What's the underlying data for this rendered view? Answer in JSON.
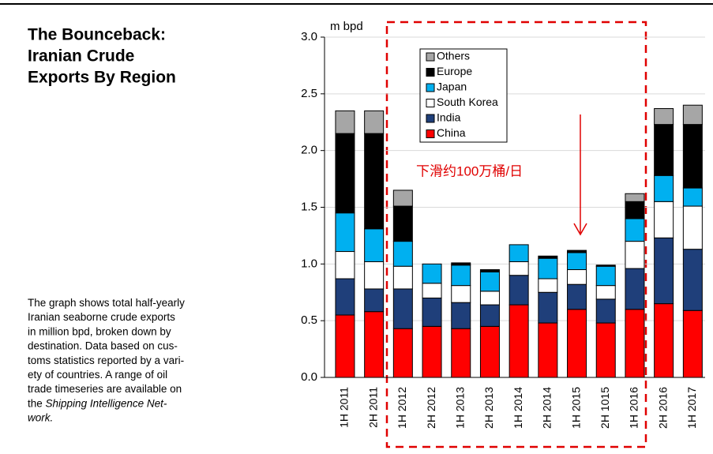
{
  "chart_data": {
    "type": "stacked_bar",
    "title": [
      "The Bounceback:",
      "Iranian Crude",
      "Exports By Region"
    ],
    "description": [
      [
        {
          "text": "The graph shows total half-yearly",
          "italic": false
        }
      ],
      [
        {
          "text": "Iranian seaborne crude exports",
          "italic": false
        }
      ],
      [
        {
          "text": "in million bpd, broken down by",
          "italic": false
        }
      ],
      [
        {
          "text": "destination. Data based on cus-",
          "italic": false
        }
      ],
      [
        {
          "text": "toms statistics reported by a vari-",
          "italic": false
        }
      ],
      [
        {
          "text": "ety of countries. A range of oil",
          "italic": false
        }
      ],
      [
        {
          "text": "trade timeseries are available on",
          "italic": false
        }
      ],
      [
        {
          "text": "the ",
          "italic": false
        },
        {
          "text": "Shipping Intelligence Net-",
          "italic": true
        }
      ],
      [
        {
          "text": "work.",
          "italic": true
        }
      ]
    ],
    "y_label": "m bpd",
    "annotation": "下滑约100万桶/日",
    "categories": [
      "1H 2011",
      "2H 2011",
      "1H 2012",
      "2H 2012",
      "1H 2013",
      "2H 2013",
      "1H 2014",
      "2H 2014",
      "1H 2015",
      "2H 1015",
      "1H 2016",
      "2H 2016",
      "1H 2017"
    ],
    "series": [
      {
        "name": "China",
        "color": "#ff0000",
        "values": [
          0.55,
          0.58,
          0.43,
          0.45,
          0.43,
          0.45,
          0.64,
          0.48,
          0.6,
          0.48,
          0.6,
          0.65,
          0.59
        ]
      },
      {
        "name": "India",
        "color": "#1f3f7a",
        "values": [
          0.32,
          0.2,
          0.35,
          0.25,
          0.23,
          0.19,
          0.26,
          0.27,
          0.22,
          0.21,
          0.36,
          0.58,
          0.54
        ]
      },
      {
        "name": "South Korea",
        "color": "#ffffff",
        "values": [
          0.24,
          0.24,
          0.2,
          0.13,
          0.15,
          0.12,
          0.12,
          0.12,
          0.13,
          0.12,
          0.24,
          0.32,
          0.38
        ]
      },
      {
        "name": "Japan",
        "color": "#00b0f0",
        "values": [
          0.34,
          0.29,
          0.22,
          0.17,
          0.18,
          0.17,
          0.15,
          0.18,
          0.15,
          0.17,
          0.2,
          0.23,
          0.16
        ]
      },
      {
        "name": "Europe",
        "color": "#000000",
        "values": [
          0.7,
          0.84,
          0.31,
          0.0,
          0.02,
          0.02,
          0.0,
          0.02,
          0.02,
          0.01,
          0.15,
          0.45,
          0.56
        ]
      },
      {
        "name": "Others",
        "color": "#a6a6a6",
        "values": [
          0.2,
          0.2,
          0.14,
          0.0,
          0.0,
          0.0,
          0.0,
          0.0,
          0.0,
          0.0,
          0.07,
          0.14,
          0.17
        ]
      }
    ],
    "ylim": [
      0,
      3
    ],
    "yticks": [
      {
        "value": 0,
        "label": "0.0"
      },
      0.5,
      {
        "value": 1,
        "label": "1.0"
      },
      1.5,
      {
        "value": 2,
        "label": "2.0"
      },
      2.5,
      {
        "value": 3,
        "label": "3.0"
      }
    ],
    "grid": true
  }
}
